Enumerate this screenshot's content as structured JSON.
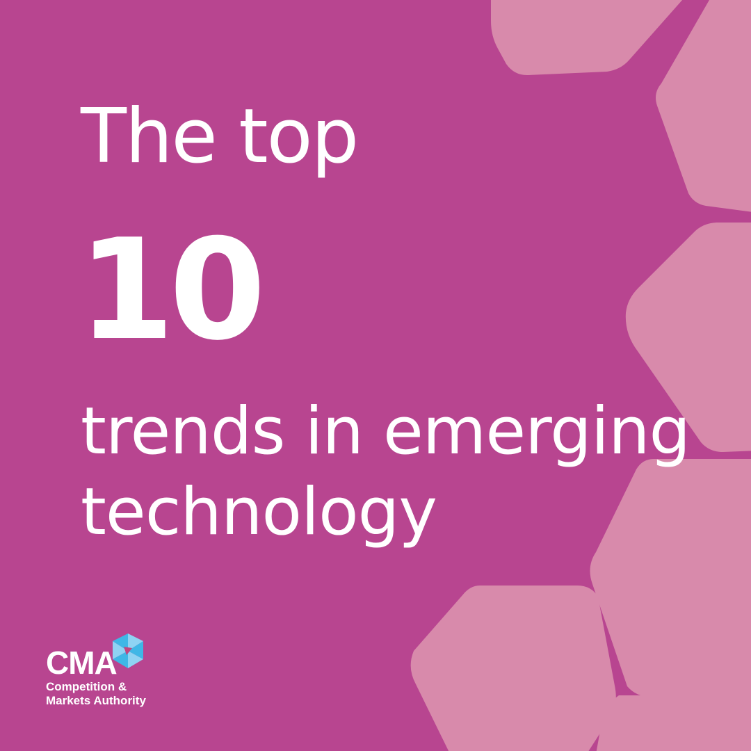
{
  "colors": {
    "background": "#b84590",
    "hexagon": "#d88aab",
    "text": "#ffffff",
    "logo_cyan": "#3fb7e6",
    "logo_light_blue": "#8fd3f3",
    "logo_magenta": "#c2467f"
  },
  "headline": {
    "line1": "The top",
    "number": "10",
    "line2": "trends in emerging",
    "line3": "technology"
  },
  "logo": {
    "acronym": "CMA",
    "name_line1": "Competition &",
    "name_line2": "Markets Authority",
    "mark_icon": "cma-hexagon-mark-icon"
  }
}
